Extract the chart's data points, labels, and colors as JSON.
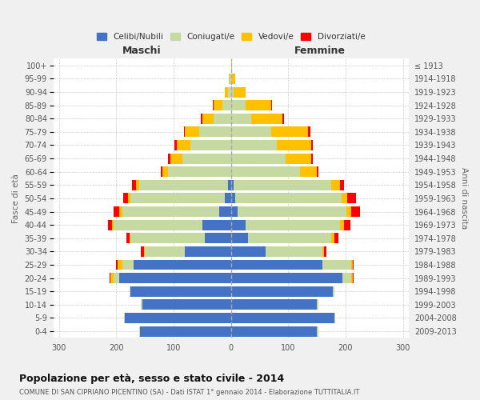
{
  "age_groups": [
    "0-4",
    "5-9",
    "10-14",
    "15-19",
    "20-24",
    "25-29",
    "30-34",
    "35-39",
    "40-44",
    "45-49",
    "50-54",
    "55-59",
    "60-64",
    "65-69",
    "70-74",
    "75-79",
    "80-84",
    "85-89",
    "90-94",
    "95-99",
    "100+"
  ],
  "birth_years": [
    "2009-2013",
    "2004-2008",
    "1999-2003",
    "1994-1998",
    "1989-1993",
    "1984-1988",
    "1979-1983",
    "1974-1978",
    "1969-1973",
    "1964-1968",
    "1959-1963",
    "1954-1958",
    "1949-1953",
    "1944-1948",
    "1939-1943",
    "1934-1938",
    "1929-1933",
    "1924-1928",
    "1919-1923",
    "1914-1918",
    "≤ 1913"
  ],
  "male_celibi": [
    158,
    185,
    155,
    175,
    195,
    170,
    80,
    45,
    50,
    20,
    10,
    5,
    0,
    0,
    0,
    0,
    0,
    0,
    0,
    0,
    0
  ],
  "male_coniugati": [
    2,
    2,
    2,
    2,
    10,
    20,
    70,
    130,
    155,
    170,
    165,
    155,
    110,
    85,
    70,
    55,
    30,
    15,
    5,
    2,
    0
  ],
  "male_vedovi": [
    0,
    0,
    0,
    0,
    5,
    8,
    2,
    2,
    2,
    5,
    5,
    5,
    10,
    20,
    25,
    25,
    20,
    15,
    5,
    1,
    0
  ],
  "male_divorziati": [
    0,
    0,
    0,
    0,
    2,
    2,
    5,
    5,
    8,
    10,
    8,
    8,
    2,
    5,
    3,
    2,
    2,
    2,
    0,
    0,
    0
  ],
  "female_celibi": [
    150,
    180,
    150,
    178,
    195,
    160,
    60,
    30,
    25,
    12,
    8,
    5,
    0,
    0,
    0,
    0,
    0,
    0,
    0,
    0,
    0
  ],
  "female_coniugati": [
    2,
    2,
    2,
    3,
    15,
    50,
    100,
    145,
    165,
    190,
    185,
    170,
    120,
    95,
    80,
    70,
    35,
    25,
    5,
    2,
    0
  ],
  "female_vedovi": [
    0,
    0,
    0,
    0,
    2,
    2,
    2,
    5,
    8,
    8,
    10,
    15,
    30,
    45,
    60,
    65,
    55,
    45,
    20,
    5,
    2
  ],
  "female_divorziati": [
    0,
    0,
    0,
    0,
    2,
    2,
    5,
    8,
    10,
    15,
    15,
    8,
    3,
    3,
    3,
    3,
    3,
    2,
    0,
    0,
    0
  ],
  "colors": {
    "celibi": "#4472c4",
    "coniugati": "#c5d9a0",
    "vedovi": "#ffc000",
    "divorziati": "#ff0000"
  },
  "xlim": 310,
  "title": "Popolazione per età, sesso e stato civile - 2014",
  "subtitle": "COMUNE DI SAN CIPRIANO PICENTINO (SA) - Dati ISTAT 1° gennaio 2014 - Elaborazione TUTTITALIA.IT",
  "ylabel_left": "Fasce di età",
  "ylabel_right": "Anni di nascita",
  "xlabel_male": "Maschi",
  "xlabel_female": "Femmine",
  "bg_color": "#f0f0f0",
  "plot_bg": "#ffffff",
  "legend_labels": [
    "Celibi/Nubili",
    "Coniugati/e",
    "Vedovi/e",
    "Divorziati/e"
  ]
}
